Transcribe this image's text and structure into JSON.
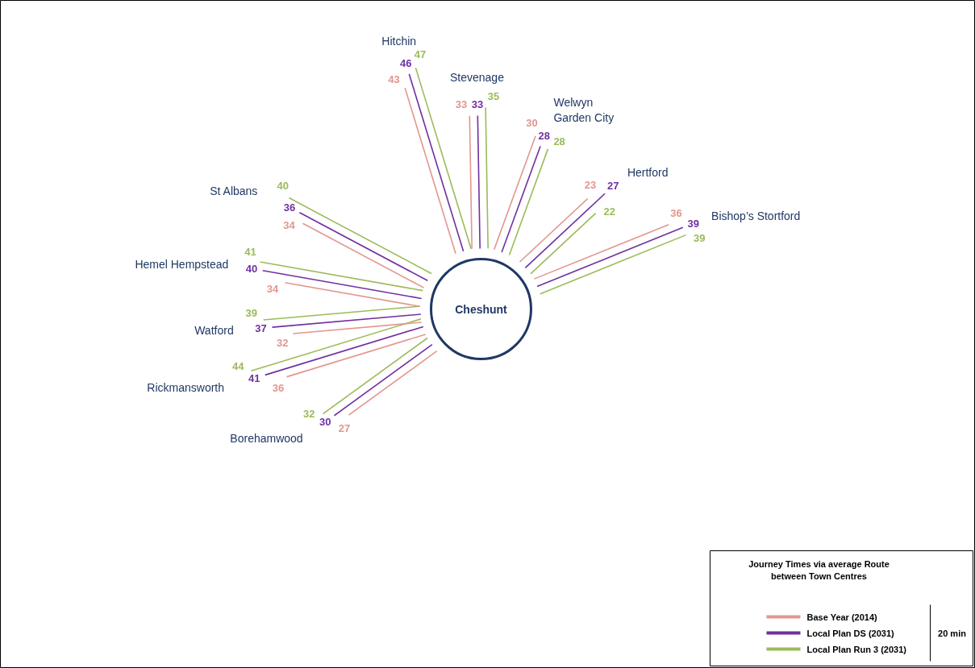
{
  "chart_data": {
    "type": "other",
    "categories": [
      "Hitchin",
      "Stevenage",
      "Welwyn\nGarden City",
      "Hertford",
      "Bishop’s Stortford",
      "Borehamwood",
      "Rickmansworth",
      "Watford",
      "Hemel Hempstead",
      "St Albans"
    ],
    "series": [
      {
        "name": "Base Year (2014)",
        "color": "#e3968f",
        "values": [
          43,
          33,
          30,
          23,
          36,
          27,
          36,
          32,
          34,
          34
        ]
      },
      {
        "name": "Local Plan DS (2031)",
        "color": "#7030a0",
        "values": [
          46,
          33,
          28,
          27,
          39,
          30,
          41,
          37,
          40,
          36
        ]
      },
      {
        "name": "Local Plan Run 3 (2031)",
        "color": "#9bbb59",
        "values": [
          47,
          35,
          28,
          22,
          39,
          32,
          44,
          39,
          41,
          40
        ]
      }
    ],
    "legend_title": "Journey Times via average Route\nbetween Town Centres",
    "annotations": [
      "Cheshunt",
      "20 min"
    ],
    "data_labels": true,
    "legend": "bottom right"
  }
}
